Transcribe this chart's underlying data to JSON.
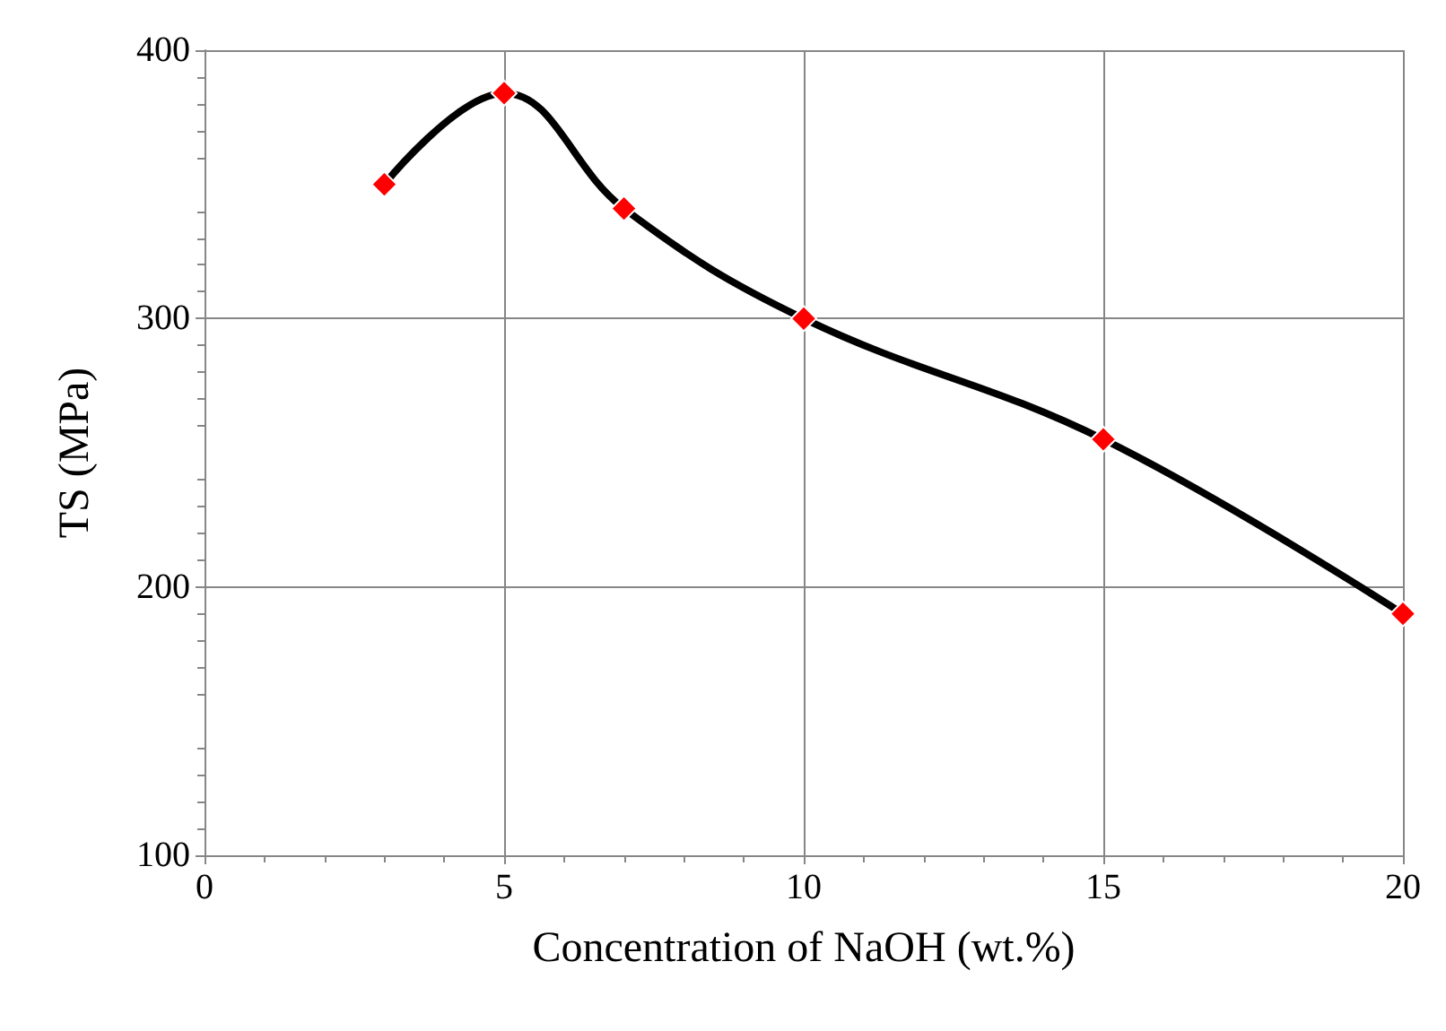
{
  "chart_data": {
    "type": "line",
    "xlabel": "Concentration of NaOH (wt.%)",
    "ylabel": "TS (MPa)",
    "x": [
      3,
      5,
      7,
      10,
      15,
      20
    ],
    "series": [
      {
        "color": "#000000",
        "colors": [
          "#ff0000",
          "#ff0000",
          "#ff0000",
          "#ff0000",
          "#ff0000",
          "#ff0000"
        ],
        "values": [
          350,
          384,
          341,
          300,
          255,
          190
        ]
      }
    ],
    "xlim": [
      0,
      20
    ],
    "xticks": [
      0,
      5,
      10,
      15,
      20
    ],
    "ylim": [
      100,
      400
    ],
    "yticks": [
      100,
      200,
      300,
      400
    ],
    "grid": true,
    "marker": "diamond",
    "line_style": "solid"
  }
}
